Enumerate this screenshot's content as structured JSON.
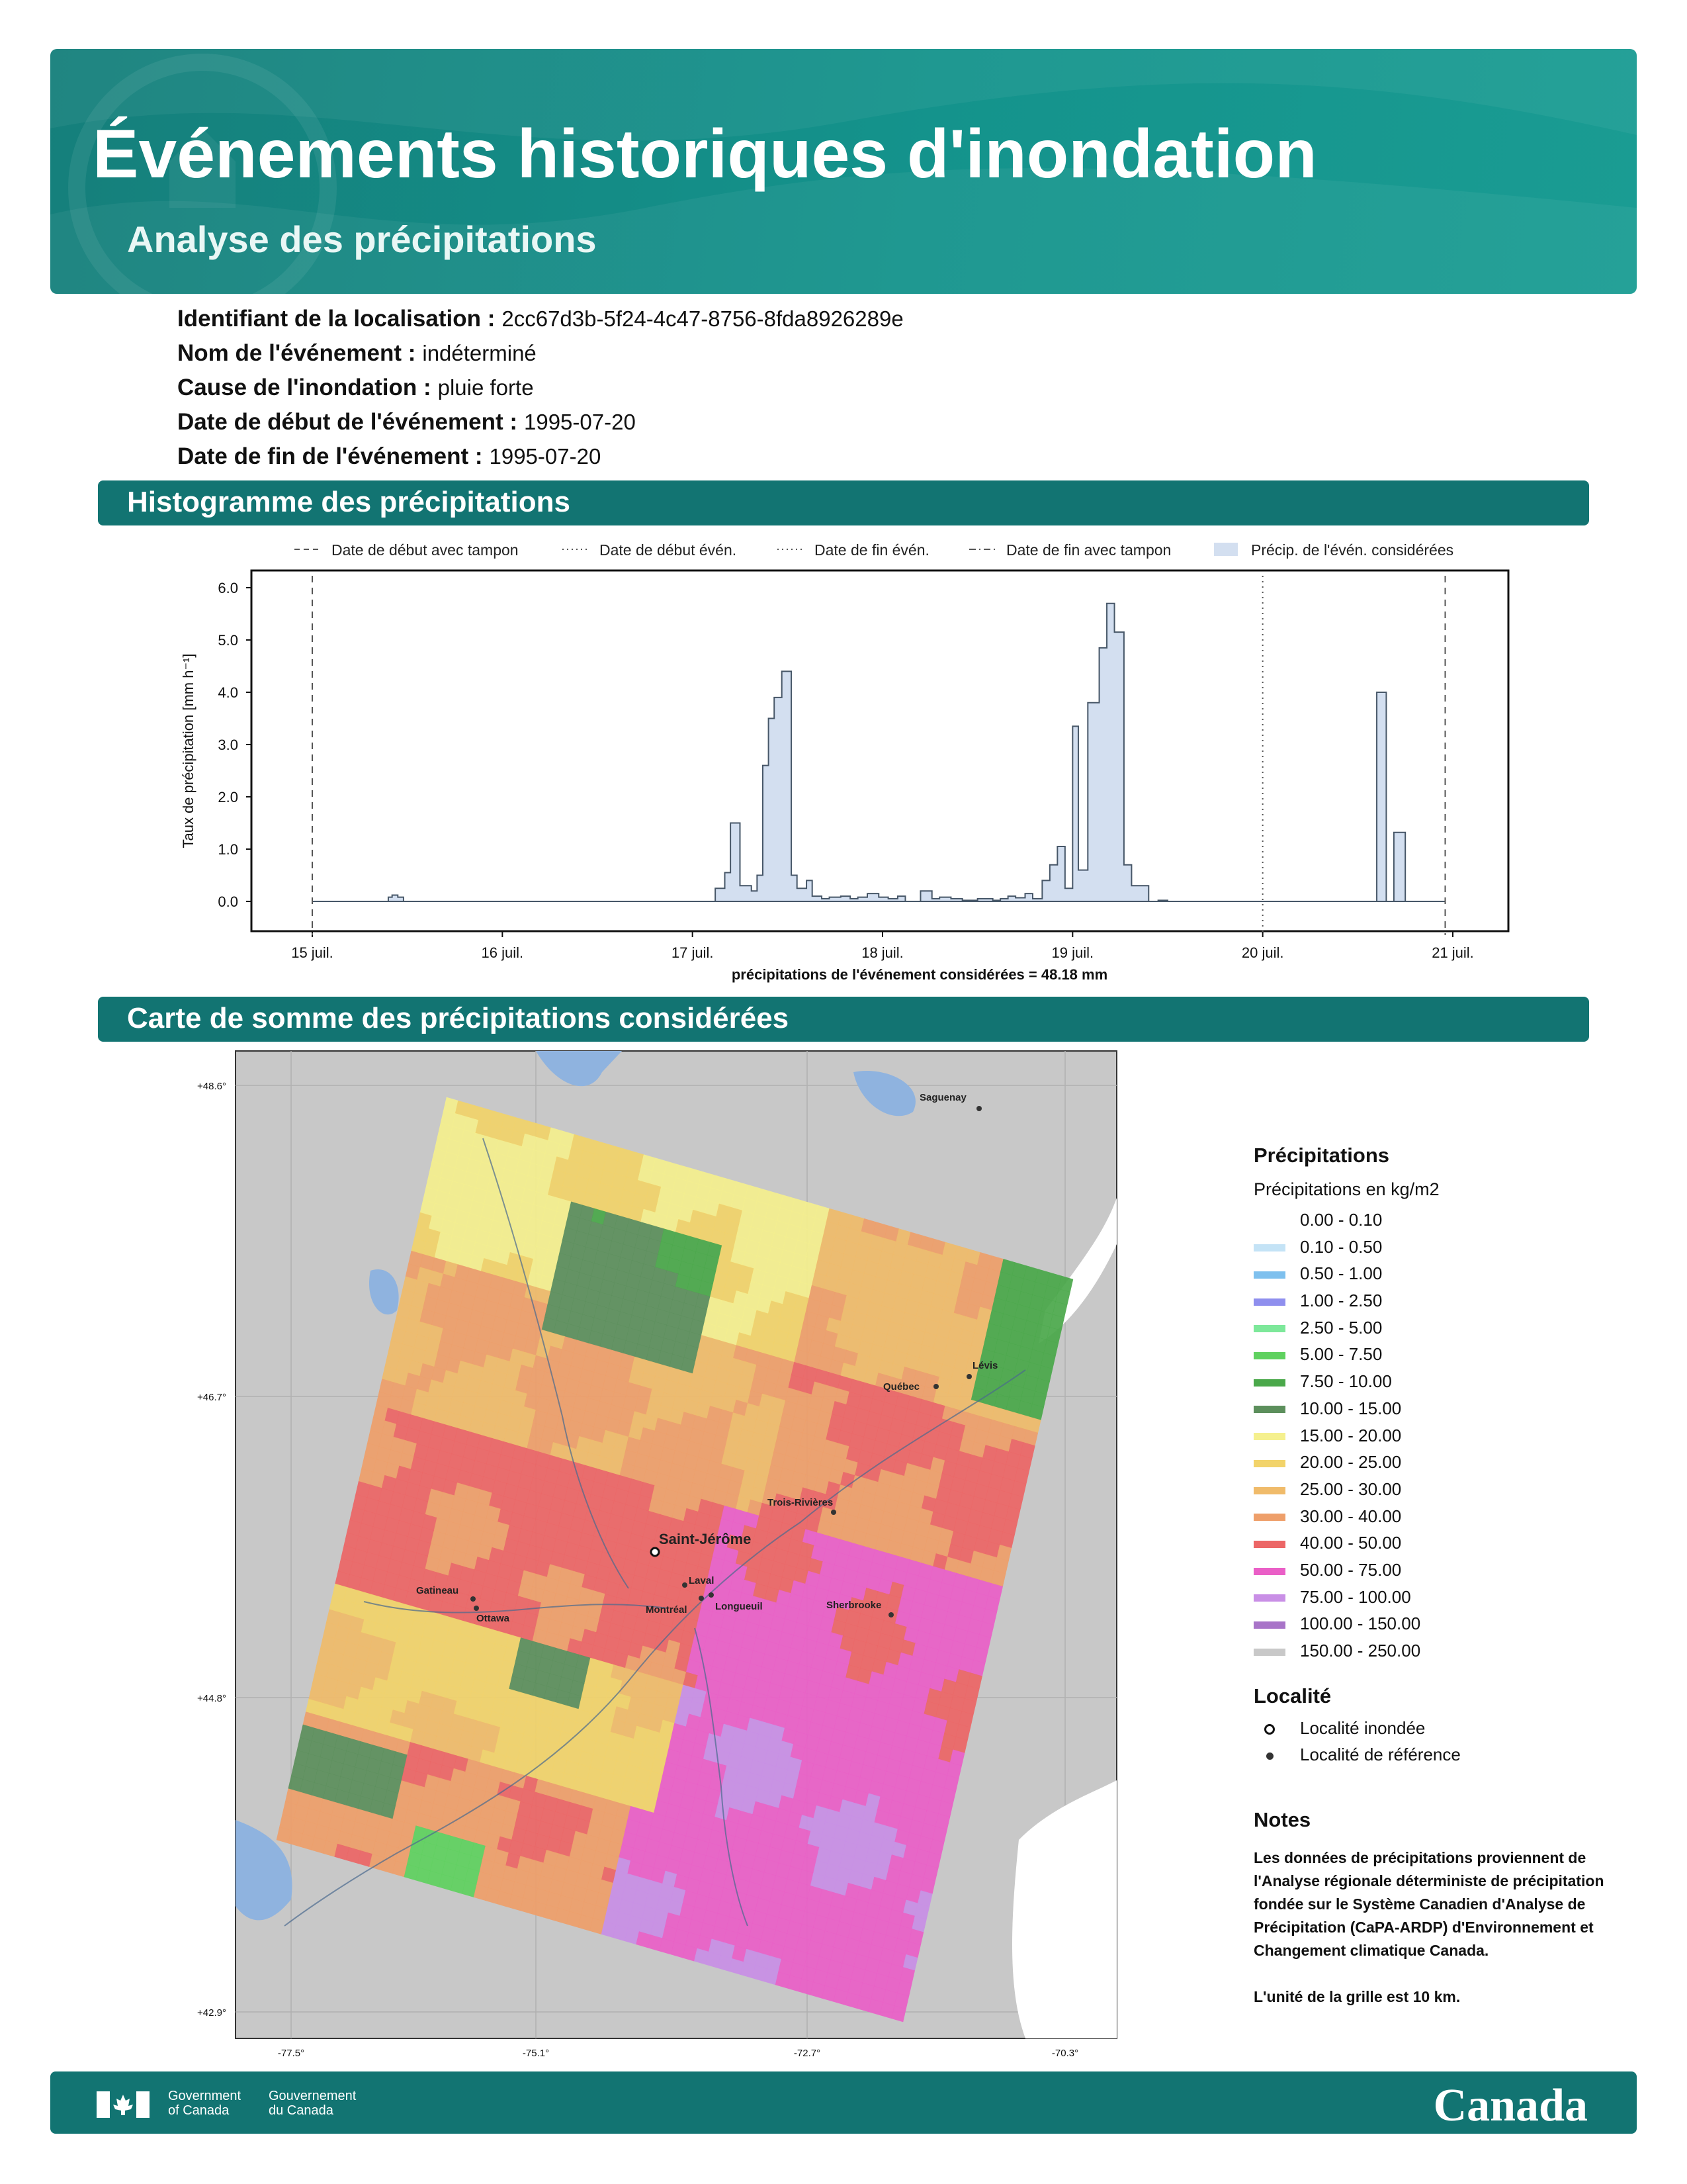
{
  "header": {
    "title": "Événements historiques d'inondation",
    "subtitle": "Analyse des précipitations"
  },
  "meta": [
    {
      "label": "Identifiant de la localisation :",
      "value": "2cc67d3b-5f24-4c47-8756-8fda8926289e"
    },
    {
      "label": "Nom de l'événement :",
      "value": "indéterminé"
    },
    {
      "label": "Cause de l'inondation :",
      "value": "pluie forte"
    },
    {
      "label": "Date de début de l'événement :",
      "value": "1995-07-20"
    },
    {
      "label": "Date de fin de l'événement :",
      "value": "1995-07-20"
    }
  ],
  "sections": {
    "histogram": "Histogramme des précipitations",
    "map": "Carte de somme des précipitations considérées"
  },
  "chart_data": {
    "type": "area",
    "ylabel": "Taux de précipitation [mm h⁻¹]",
    "xlabel": "précipitations de l'événement considérées = 48.18 mm",
    "yticks": [
      "0.0",
      "1.0",
      "2.0",
      "3.0",
      "4.0",
      "5.0",
      "6.0"
    ],
    "ylim": [
      -0.6,
      6.2
    ],
    "xticks": [
      "15 juil.",
      "16 juil.",
      "17 juil.",
      "18 juil.",
      "19 juil.",
      "20 juil.",
      "21 juil."
    ],
    "x_unit": "days from 15 juil. 00:00",
    "legend": [
      {
        "label": "Date de début avec tampon",
        "style": "dashed"
      },
      {
        "label": "Date de début évén.",
        "style": "dotted"
      },
      {
        "label": "Date de fin évén.",
        "style": "dotted"
      },
      {
        "label": "Date de fin avec tampon",
        "style": "dashdot"
      },
      {
        "label": "Précip. de l'évén. considérées",
        "style": "fill"
      }
    ],
    "vlines": [
      {
        "x": 0.0,
        "style": "dashed"
      },
      {
        "x": 5.0,
        "style": "dotted"
      },
      {
        "x": 5.96,
        "style": "dashed"
      }
    ],
    "series": [
      {
        "x": [
          0.0,
          0.4,
          0.42,
          0.45,
          0.48,
          0.52,
          2.12,
          2.17,
          2.2,
          2.25,
          2.31,
          2.34,
          2.37,
          2.4,
          2.43,
          2.47,
          2.52,
          2.55,
          2.6,
          2.63,
          2.68,
          2.72,
          2.78,
          2.83,
          2.87,
          2.92,
          2.98,
          3.03,
          3.08,
          3.12,
          3.2,
          3.26,
          3.3,
          3.36,
          3.42,
          3.5,
          3.58,
          3.62,
          3.66,
          3.7,
          3.75,
          3.79,
          3.84,
          3.88,
          3.92,
          3.96,
          4.0,
          4.03,
          4.08,
          4.14,
          4.18,
          4.22,
          4.27,
          4.31,
          4.4,
          4.45,
          4.5,
          4.55,
          5.0,
          5.6,
          5.65,
          5.69,
          5.75,
          5.96
        ],
        "y": [
          0.0,
          0.08,
          0.12,
          0.08,
          0.0,
          0.0,
          0.25,
          0.55,
          1.5,
          0.3,
          0.2,
          0.5,
          2.6,
          3.5,
          3.9,
          4.4,
          0.5,
          0.25,
          0.4,
          0.1,
          0.05,
          0.08,
          0.1,
          0.05,
          0.08,
          0.15,
          0.08,
          0.05,
          0.1,
          0.0,
          0.2,
          0.05,
          0.08,
          0.05,
          0.02,
          0.05,
          0.02,
          0.05,
          0.1,
          0.07,
          0.15,
          0.05,
          0.4,
          0.7,
          1.05,
          0.25,
          3.35,
          0.6,
          3.8,
          4.85,
          5.7,
          5.15,
          0.7,
          0.3,
          0.0,
          0.02,
          0.0,
          0.0,
          0.0,
          4.0,
          0.0,
          1.32,
          0.0,
          0.0
        ]
      }
    ]
  },
  "map": {
    "lat_ticks": [
      "+48.6°",
      "+46.7°",
      "+44.8°",
      "+42.9°"
    ],
    "lon_ticks": [
      "-77.5°",
      "-75.1°",
      "-72.7°",
      "-70.3°"
    ],
    "cities": [
      {
        "name": "Saguenay"
      },
      {
        "name": "Lévis"
      },
      {
        "name": "Québec"
      },
      {
        "name": "Trois-Rivières"
      },
      {
        "name": "Saint-Jérôme"
      },
      {
        "name": "Laval"
      },
      {
        "name": "Gatineau"
      },
      {
        "name": "Ottawa"
      },
      {
        "name": "Montréal"
      },
      {
        "name": "Longueuil"
      },
      {
        "name": "Sherbrooke"
      }
    ]
  },
  "legend": {
    "title": "Précipitations",
    "subtitle": "Précipitations en kg/m2",
    "classes": [
      {
        "label": "0.00 - 0.10",
        "color": "#ffffff"
      },
      {
        "label": "0.10 - 0.50",
        "color": "#c4e3f6"
      },
      {
        "label": "0.50 - 1.00",
        "color": "#7ec0ee"
      },
      {
        "label": "1.00 - 2.50",
        "color": "#8f8fee"
      },
      {
        "label": "2.50 - 5.00",
        "color": "#7de89a"
      },
      {
        "label": "5.00 - 7.50",
        "color": "#5fd15f"
      },
      {
        "label": "7.50 - 10.00",
        "color": "#4aa84a"
      },
      {
        "label": "10.00 - 15.00",
        "color": "#5c8f5c"
      },
      {
        "label": "15.00 - 20.00",
        "color": "#f5f08e"
      },
      {
        "label": "20.00 - 25.00",
        "color": "#f2d36a"
      },
      {
        "label": "25.00 - 30.00",
        "color": "#f0bb6a"
      },
      {
        "label": "30.00 - 40.00",
        "color": "#ee9f6a"
      },
      {
        "label": "40.00 - 50.00",
        "color": "#ec6666"
      },
      {
        "label": "50.00 - 75.00",
        "color": "#ea5fc7"
      },
      {
        "label": "75.00 - 100.00",
        "color": "#c98fe6"
      },
      {
        "label": "100.00 - 150.00",
        "color": "#a874c8"
      },
      {
        "label": "150.00 - 250.00",
        "color": "#c8c8c8"
      }
    ],
    "locality_title": "Localité",
    "locality_flooded": "Localité inondée",
    "locality_reference": "Localité de référence",
    "notes_title": "Notes",
    "notes_text": "Les données de précipitations proviennent de l'Analyse régionale déterministe de précipitation fondée sur le Système Canadien d'Analyse de Précipitation (CaPA-ARDP) d'Environnement et Changement climatique Canada.",
    "grid_note": "L'unité de la grille est 10 km."
  },
  "footer": {
    "gov_en_1": "Government",
    "gov_en_2": "of Canada",
    "gov_fr_1": "Gouvernement",
    "gov_fr_2": "du Canada",
    "wordmark": "Canada"
  }
}
